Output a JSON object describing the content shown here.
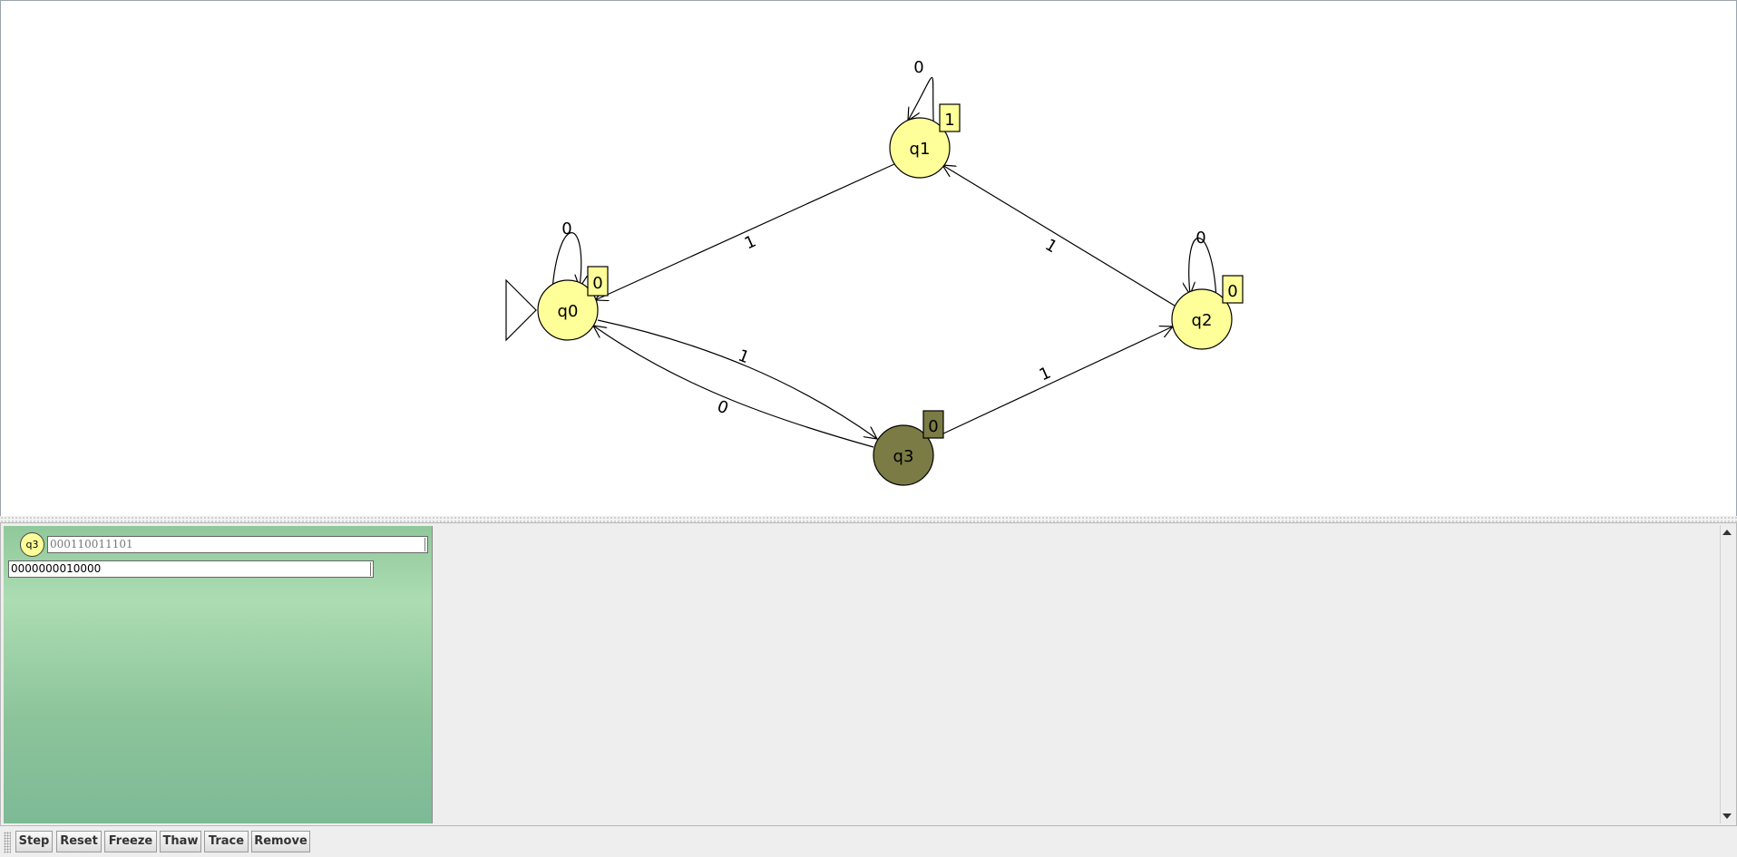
{
  "automaton": {
    "states": [
      {
        "id": "q0",
        "label": "q0",
        "output": "0",
        "initial": true,
        "active": false
      },
      {
        "id": "q1",
        "label": "q1",
        "output": "1",
        "initial": false,
        "active": false
      },
      {
        "id": "q2",
        "label": "q2",
        "output": "0",
        "initial": false,
        "active": false
      },
      {
        "id": "q3",
        "label": "q3",
        "output": "0",
        "initial": false,
        "active": true
      }
    ],
    "transitions": [
      {
        "from": "q0",
        "to": "q0",
        "label": "0"
      },
      {
        "from": "q1",
        "to": "q1",
        "label": "0"
      },
      {
        "from": "q2",
        "to": "q2",
        "label": "0"
      },
      {
        "from": "q1",
        "to": "q0",
        "label": "1"
      },
      {
        "from": "q2",
        "to": "q1",
        "label": "1"
      },
      {
        "from": "q0",
        "to": "q3",
        "label": "1"
      },
      {
        "from": "q3",
        "to": "q0",
        "label": "0"
      },
      {
        "from": "q3",
        "to": "q2",
        "label": "1"
      }
    ]
  },
  "colors": {
    "state_fill": "#ffff99",
    "active_state_fill": "#7b7b45",
    "panel_green": "#9bd2a4"
  },
  "simulation": {
    "configuration": {
      "state": "q3",
      "remaining_input": "000110011101",
      "output": "0000000010000"
    }
  },
  "toolbar": {
    "step": "Step",
    "reset": "Reset",
    "freeze": "Freeze",
    "thaw": "Thaw",
    "trace": "Trace",
    "remove": "Remove"
  }
}
